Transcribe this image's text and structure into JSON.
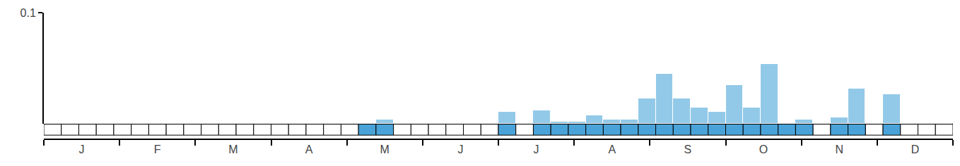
{
  "chart_data": {
    "type": "histogram",
    "bins": [
      0,
      1,
      2,
      3,
      4,
      5,
      6,
      7,
      8,
      9,
      10,
      11,
      12,
      13,
      14,
      15,
      16,
      17,
      18,
      19,
      20,
      21,
      22,
      23,
      24,
      25,
      26,
      27,
      28,
      29,
      30,
      31,
      32,
      33,
      34,
      35,
      36,
      37,
      38,
      39,
      40,
      41,
      42,
      43,
      44,
      45,
      46,
      47,
      48,
      49,
      50,
      51,
      52
    ],
    "values": [
      0,
      0,
      0,
      0,
      0,
      0,
      0,
      0,
      0,
      0,
      0,
      0,
      0,
      0,
      0,
      0,
      0,
      0,
      0.001,
      0.004,
      0,
      0,
      0,
      0,
      0,
      0,
      0.011,
      0,
      0.012,
      0.002,
      0.002,
      0.008,
      0.004,
      0.004,
      0.023,
      0.045,
      0.023,
      0.015,
      0.011,
      0.035,
      0.015,
      0.054,
      0.001,
      0.004,
      0,
      0.006,
      0.032,
      0,
      0.027,
      0,
      0,
      0
    ],
    "color": "#93c9e8",
    "xlim": [
      0,
      52
    ],
    "xticks": [
      {
        "value": 2.167,
        "label": "J"
      },
      {
        "value": 6.5,
        "label": "F"
      },
      {
        "value": 10.833,
        "label": "M"
      },
      {
        "value": 15.167,
        "label": "A"
      },
      {
        "value": 19.5,
        "label": "M"
      },
      {
        "value": 23.833,
        "label": "J"
      },
      {
        "value": 28.167,
        "label": "J"
      },
      {
        "value": 32.5,
        "label": "A"
      },
      {
        "value": 36.833,
        "label": "S"
      },
      {
        "value": 41.167,
        "label": "O"
      },
      {
        "value": 45.5,
        "label": "N"
      },
      {
        "value": 49.833,
        "label": "D"
      }
    ],
    "ylim": [
      0,
      0.1
    ],
    "yticks": [
      0.1
    ],
    "grid": false
  }
}
